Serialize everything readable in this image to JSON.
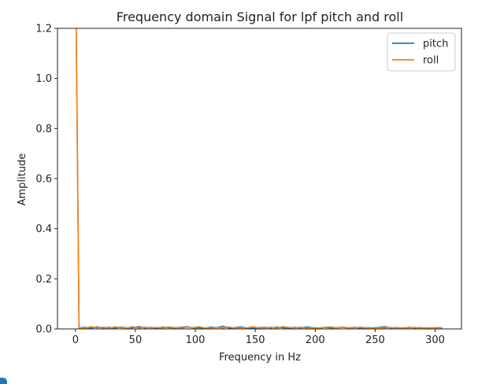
{
  "chart_data": {
    "type": "line",
    "title": "Frequency domain Signal for lpf pitch and roll",
    "xlabel": "Frequency in Hz",
    "ylabel": "Amplitude",
    "xlim": [
      -15,
      322
    ],
    "ylim": [
      0,
      1.2
    ],
    "xticks": [
      0,
      50,
      100,
      150,
      200,
      250,
      300
    ],
    "yticks": [
      "0.0",
      "0.2",
      "0.4",
      "0.6",
      "0.8",
      "1.0",
      "1.2"
    ],
    "grid": false,
    "legend_position": "upper right",
    "x": [
      0,
      3,
      8,
      13,
      18,
      23,
      28,
      33,
      38,
      43,
      48,
      53,
      58,
      63,
      68,
      73,
      78,
      83,
      88,
      93,
      98,
      103,
      108,
      113,
      118,
      123,
      128,
      133,
      138,
      143,
      148,
      153,
      158,
      163,
      168,
      173,
      178,
      183,
      188,
      193,
      198,
      203,
      208,
      213,
      218,
      223,
      228,
      233,
      238,
      243,
      248,
      253,
      258,
      263,
      268,
      273,
      278,
      283,
      288,
      293,
      298,
      303,
      306
    ],
    "series": [
      {
        "name": "pitch",
        "color": "#1f77b4",
        "values": [
          1.5,
          0.004,
          0.006,
          0.003,
          0.008,
          0.004,
          0.006,
          0.003,
          0.007,
          0.004,
          0.005,
          0.009,
          0.004,
          0.006,
          0.003,
          0.007,
          0.005,
          0.004,
          0.006,
          0.009,
          0.004,
          0.005,
          0.003,
          0.007,
          0.005,
          0.011,
          0.003,
          0.005,
          0.008,
          0.004,
          0.003,
          0.005,
          0.006,
          0.004,
          0.007,
          0.005,
          0.003,
          0.006,
          0.004,
          0.008,
          0.005,
          0.003,
          0.006,
          0.004,
          0.005,
          0.007,
          0.004,
          0.006,
          0.003,
          0.005,
          0.004,
          0.006,
          0.009,
          0.004,
          0.005,
          0.003,
          0.006,
          0.004,
          0.005,
          0.003,
          0.004,
          0.005,
          0.004
        ]
      },
      {
        "name": "roll",
        "color": "#ff7f0e",
        "values": [
          1.5,
          0.005,
          0.003,
          0.009,
          0.004,
          0.007,
          0.003,
          0.008,
          0.005,
          0.004,
          0.009,
          0.003,
          0.007,
          0.004,
          0.006,
          0.003,
          0.008,
          0.005,
          0.003,
          0.007,
          0.005,
          0.009,
          0.004,
          0.003,
          0.006,
          0.004,
          0.008,
          0.003,
          0.005,
          0.004,
          0.009,
          0.003,
          0.004,
          0.007,
          0.003,
          0.009,
          0.006,
          0.004,
          0.007,
          0.003,
          0.005,
          0.004,
          0.006,
          0.008,
          0.004,
          0.006,
          0.003,
          0.005,
          0.007,
          0.004,
          0.003,
          0.005,
          0.004,
          0.006,
          0.003,
          0.005,
          0.004,
          0.006,
          0.003,
          0.005,
          0.004,
          0.003,
          0.005
        ]
      }
    ]
  }
}
